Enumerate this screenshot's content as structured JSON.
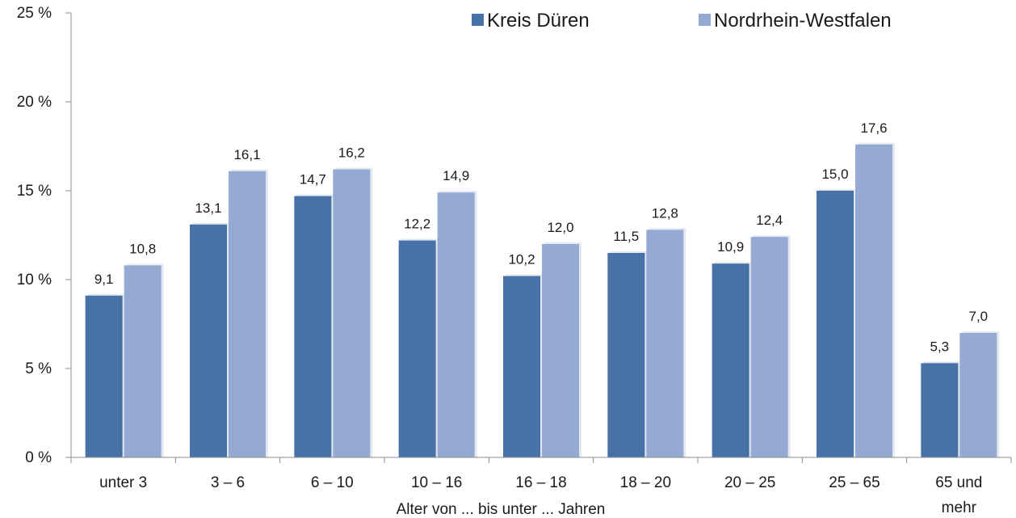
{
  "chart_data": {
    "type": "bar",
    "xlabel": "Alter von ... bis unter ... Jahren",
    "ylabel": "",
    "ylim": [
      0,
      25
    ],
    "yticks": [
      0,
      5,
      10,
      15,
      20,
      25
    ],
    "ytick_labels": [
      "0 %",
      "5 %",
      "10 %",
      "15 %",
      "20 %",
      "25 %"
    ],
    "categories": [
      [
        "unter 3"
      ],
      [
        "3 –  6"
      ],
      [
        "6 – 10"
      ],
      [
        "10 – 16"
      ],
      [
        "16 – 18"
      ],
      [
        "18 – 20"
      ],
      [
        "20 – 25"
      ],
      [
        "25 – 65"
      ],
      [
        "65 und",
        "mehr"
      ]
    ],
    "series": [
      {
        "name": "Kreis Düren",
        "color": "#4672a8",
        "values": [
          9.1,
          13.1,
          14.7,
          12.2,
          10.2,
          11.5,
          10.9,
          15.0,
          5.3
        ],
        "labels": [
          "9,1",
          "13,1",
          "14,7",
          "12,2",
          "10,2",
          "11,5",
          "10,9",
          "15,0",
          "5,3"
        ]
      },
      {
        "name": "Nordrhein-Westfalen",
        "color": "#94aad2",
        "values": [
          10.8,
          16.1,
          16.2,
          14.9,
          12.0,
          12.8,
          12.4,
          17.6,
          7.0
        ],
        "labels": [
          "10,8",
          "16,1",
          "16,2",
          "14,9",
          "12,0",
          "12,8",
          "12,4",
          "17,6",
          "7,0"
        ]
      }
    ],
    "legend_position": "top-right",
    "grid": false
  }
}
